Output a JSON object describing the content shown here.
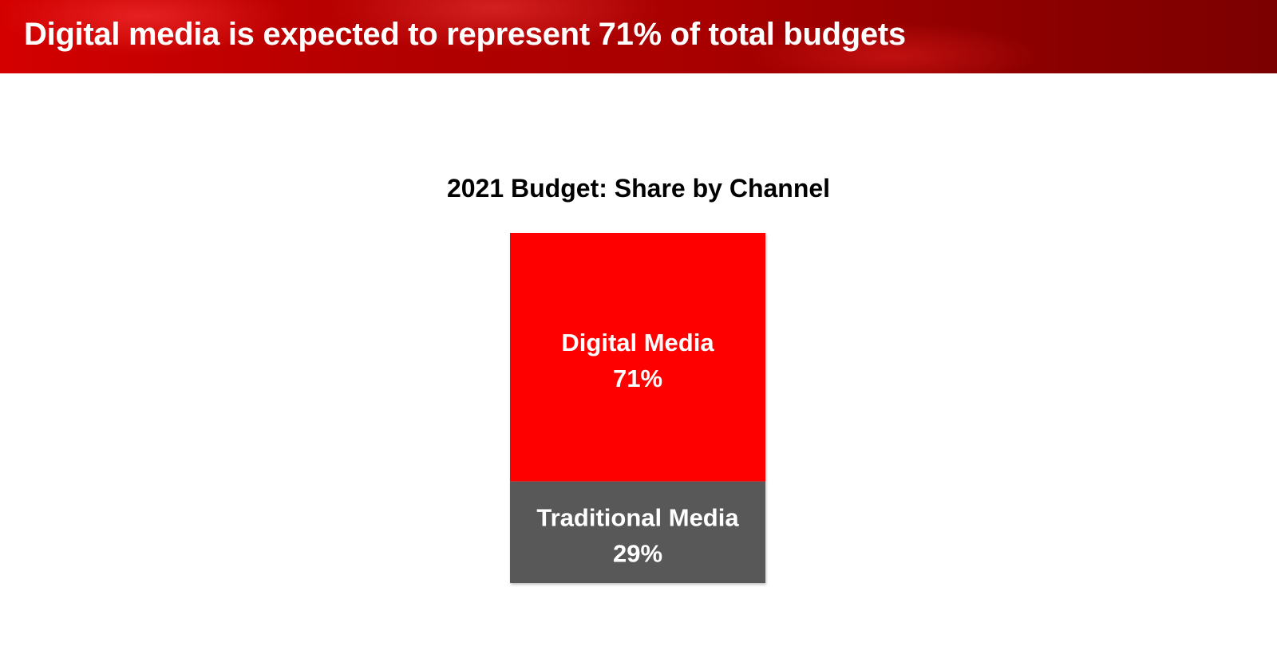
{
  "header": {
    "title": "Digital media is expected to represent 71% of total budgets"
  },
  "colors": {
    "header_red": "#b30000",
    "digital": "#ff0000",
    "traditional": "#595959"
  },
  "chart_data": {
    "type": "bar",
    "stacked": true,
    "title": "2021 Budget: Share by Channel",
    "xlabel": "",
    "ylabel": "",
    "ylim": [
      0,
      100
    ],
    "unit": "%",
    "grid": false,
    "legend": "none",
    "categories": [
      "2021"
    ],
    "series": [
      {
        "name": "Digital Media",
        "values": [
          71
        ],
        "label": "71%",
        "color": "#ff0000"
      },
      {
        "name": "Traditional Media",
        "values": [
          29
        ],
        "label": "29%",
        "color": "#595959"
      }
    ]
  }
}
